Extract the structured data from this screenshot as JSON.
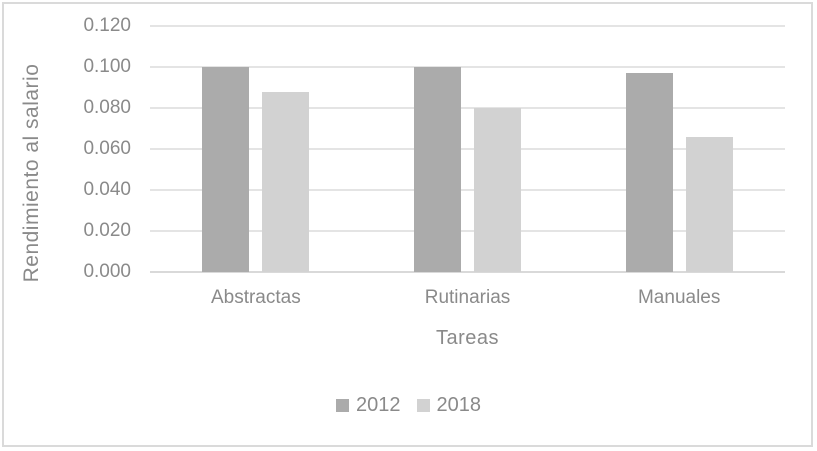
{
  "chart_data": {
    "type": "bar",
    "categories": [
      "Abstractas",
      "Rutinarias",
      "Manuales"
    ],
    "series": [
      {
        "name": "2012",
        "color": "#ABABAB",
        "values": [
          0.1,
          0.1,
          0.097
        ]
      },
      {
        "name": "2018",
        "color": "#D2D2D2",
        "values": [
          0.088,
          0.08,
          0.066
        ]
      }
    ],
    "title": "",
    "xlabel": "Tareas",
    "ylabel": "Rendimiento al salario",
    "ylim": [
      0,
      0.12
    ],
    "ytick_step": 0.02,
    "yticks": [
      "0.000",
      "0.020",
      "0.040",
      "0.060",
      "0.080",
      "0.100",
      "0.120"
    ],
    "grid": true,
    "legend_position": "bottom-center",
    "colors": {
      "bar_2012": "#ABABAB",
      "bar_2018": "#D2D2D2",
      "gridline": "#E4E4E4",
      "axis_line": "#D9D9D9",
      "text": "#8a8a8a",
      "chart_border": "#DADADA"
    }
  }
}
